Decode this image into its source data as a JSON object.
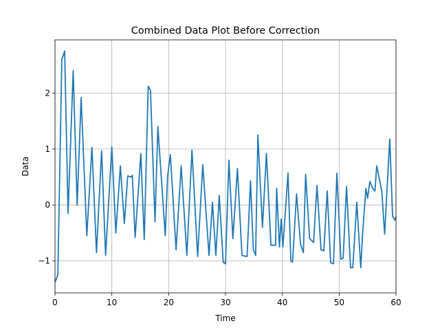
{
  "chart_data": {
    "type": "line",
    "title": "Combined Data Plot Before Correction",
    "xlabel": "Time",
    "ylabel": "Data",
    "xlim": [
      0,
      60
    ],
    "ylim": [
      -1.57,
      2.95
    ],
    "xticks": [
      0,
      10,
      20,
      30,
      40,
      50,
      60
    ],
    "yticks": [
      {
        "value": -1,
        "label": "−1"
      },
      0,
      1,
      2
    ],
    "grid": true,
    "x": [
      0,
      0.5,
      1.2,
      1.7,
      2.3,
      3.2,
      3.9,
      4.6,
      5.6,
      6.5,
      7.3,
      8.2,
      8.9,
      10,
      10.7,
      11.5,
      12.2,
      12.8,
      13.4,
      13.6,
      14.1,
      15.1,
      15.7,
      16.4,
      16.8,
      17.6,
      18.1,
      19.4,
      19.8,
      20.3,
      21.3,
      22.2,
      23.2,
      24.1,
      25.1,
      26,
      27.1,
      27.7,
      28.3,
      28.9,
      29.6,
      30,
      30.6,
      31.3,
      32.1,
      32.9,
      33.8,
      34.4,
      34.9,
      35.3,
      35.7,
      36.5,
      37.2,
      38,
      38.8,
      39,
      39.5,
      39.8,
      40.1,
      41,
      41.5,
      41.8,
      42.5,
      43.2,
      43.7,
      44.1,
      44.8,
      45.5,
      46.1,
      46.8,
      47.3,
      47.9,
      48.5,
      49,
      49.6,
      50.3,
      50.7,
      51.3,
      52,
      52.4,
      53.1,
      53.8,
      54.1,
      54.7,
      55,
      55.4,
      55.9,
      56.3,
      56.6,
      57.2,
      57.5,
      58,
      58.9,
      59.4,
      59.8,
      60
    ],
    "series": [
      {
        "name": "Data",
        "color": "#1f77b4",
        "values": [
          -1.38,
          -1.25,
          2.6,
          2.75,
          -0.15,
          2.4,
          0,
          1.92,
          -0.55,
          1.03,
          -0.85,
          0.97,
          -0.9,
          1.04,
          -0.5,
          0.7,
          -0.33,
          0.52,
          0.5,
          0.53,
          -0.58,
          0.92,
          -0.62,
          2.12,
          2.05,
          -0.3,
          1.4,
          -0.55,
          0.5,
          0.9,
          -0.8,
          0.7,
          -0.9,
          0.98,
          -0.92,
          0.72,
          -0.9,
          0.05,
          -0.9,
          0.17,
          -1.02,
          -1.05,
          0.8,
          -0.6,
          0.65,
          -0.9,
          -0.92,
          0.43,
          -0.8,
          -0.9,
          1.25,
          -0.4,
          0.92,
          -0.72,
          -0.72,
          0.3,
          -0.75,
          -0.25,
          -0.75,
          0.57,
          -1.0,
          -1.02,
          0.2,
          -0.7,
          -0.85,
          0.55,
          -0.6,
          -0.67,
          0.35,
          -0.8,
          -0.82,
          0.25,
          -1.03,
          -1.05,
          0.57,
          -0.97,
          -0.95,
          0.33,
          -1.12,
          -1.12,
          0.05,
          -1.12,
          -0.55,
          0.3,
          0.12,
          0.42,
          0.3,
          0.25,
          0.7,
          0.4,
          0.25,
          -0.52,
          1.18,
          -0.2,
          -0.27,
          -0.22
        ]
      }
    ]
  }
}
